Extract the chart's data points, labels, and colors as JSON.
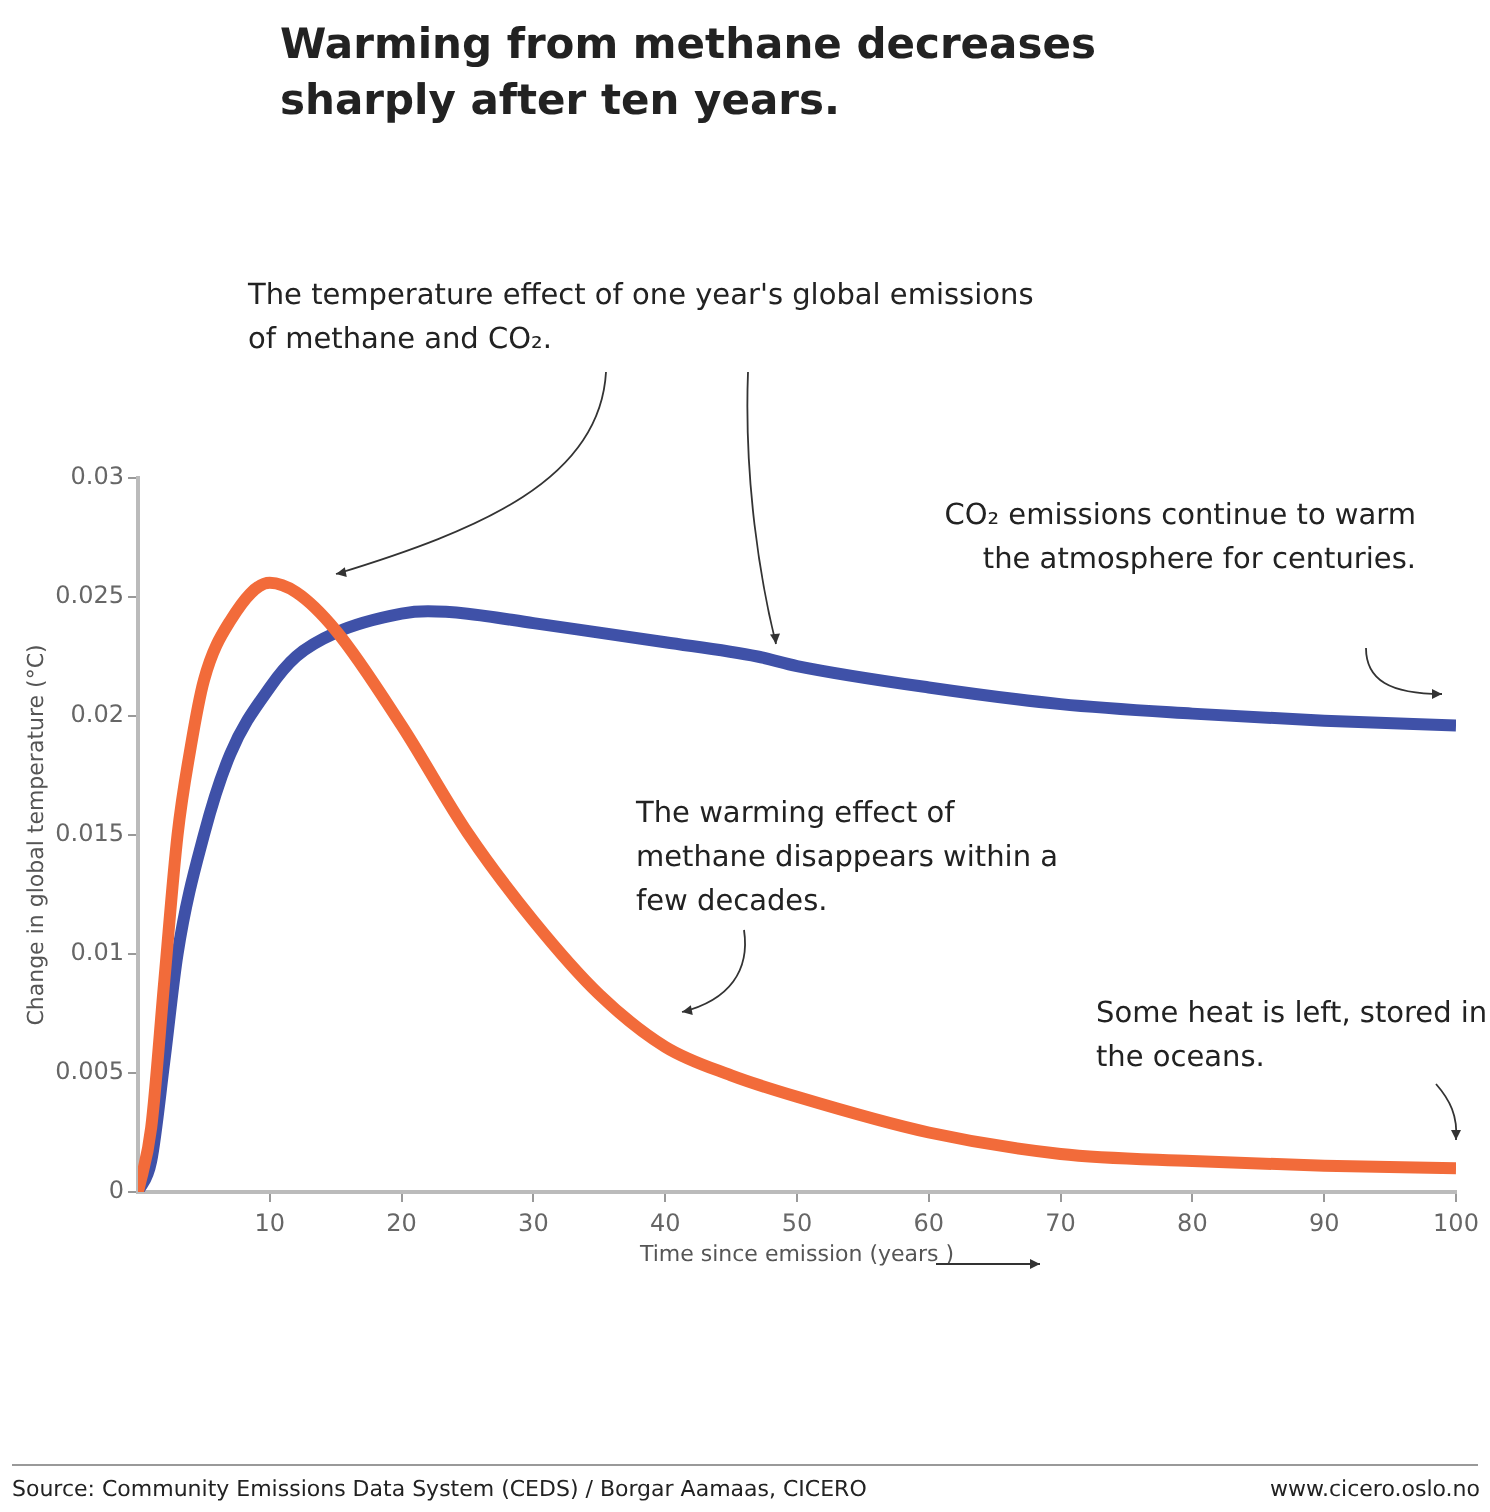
{
  "chart_data": {
    "type": "line",
    "title": "Warming from methane decreases sharply after ten years.",
    "xlabel": "Time since emission (years )",
    "ylabel": "Change in global temperature (°C)",
    "xlim": [
      0,
      100
    ],
    "xticks": [
      10,
      20,
      30,
      40,
      50,
      60,
      70,
      80,
      90,
      100
    ],
    "ylim": [
      0,
      0.03
    ],
    "yticks": [
      0,
      0.005,
      0.01,
      0.015,
      0.02,
      0.025,
      0.03
    ],
    "grid": false,
    "legend": false,
    "marker": "none",
    "line_style": "solid",
    "series": [
      {
        "color": "#f26b3a",
        "x": [
          0,
          1,
          2,
          3,
          4,
          5,
          7,
          10,
          12,
          15,
          20,
          25,
          30,
          35,
          40,
          45,
          50,
          60,
          70,
          80,
          90,
          100
        ],
        "values": [
          0,
          0.0027,
          0.0089,
          0.015,
          0.0187,
          0.0215,
          0.024,
          0.0256,
          0.0252,
          0.0236,
          0.0196,
          0.0151,
          0.0114,
          0.0083,
          0.0061,
          0.0049,
          0.004,
          0.0025,
          0.0016,
          0.0013,
          0.0011,
          0.001
        ]
      },
      {
        "color": "#3f51a8",
        "x": [
          0,
          1,
          2,
          3,
          5,
          7,
          10,
          12,
          15,
          20,
          22,
          25,
          30,
          40,
          47,
          50,
          60,
          70,
          80,
          90,
          100
        ],
        "values": [
          0,
          0.0013,
          0.0055,
          0.01,
          0.015,
          0.0184,
          0.0212,
          0.0225,
          0.0235,
          0.0243,
          0.0244,
          0.0243,
          0.0239,
          0.0231,
          0.0225,
          0.0221,
          0.0212,
          0.0205,
          0.0201,
          0.0198,
          0.0196
        ]
      }
    ],
    "annotations": [
      "The temperature effect of one year's global emissions of methane and CO₂.",
      "CO₂ emissions continue to warm the atmosphere for centuries.",
      "The warming effect of methane disappears within a few decades.",
      "Some heat is left, stored in the oceans.",
      "Source: Community Emissions Data System (CEDS)  / Borgar Aamaas, CICERO",
      "www.cicero.oslo.no"
    ]
  }
}
